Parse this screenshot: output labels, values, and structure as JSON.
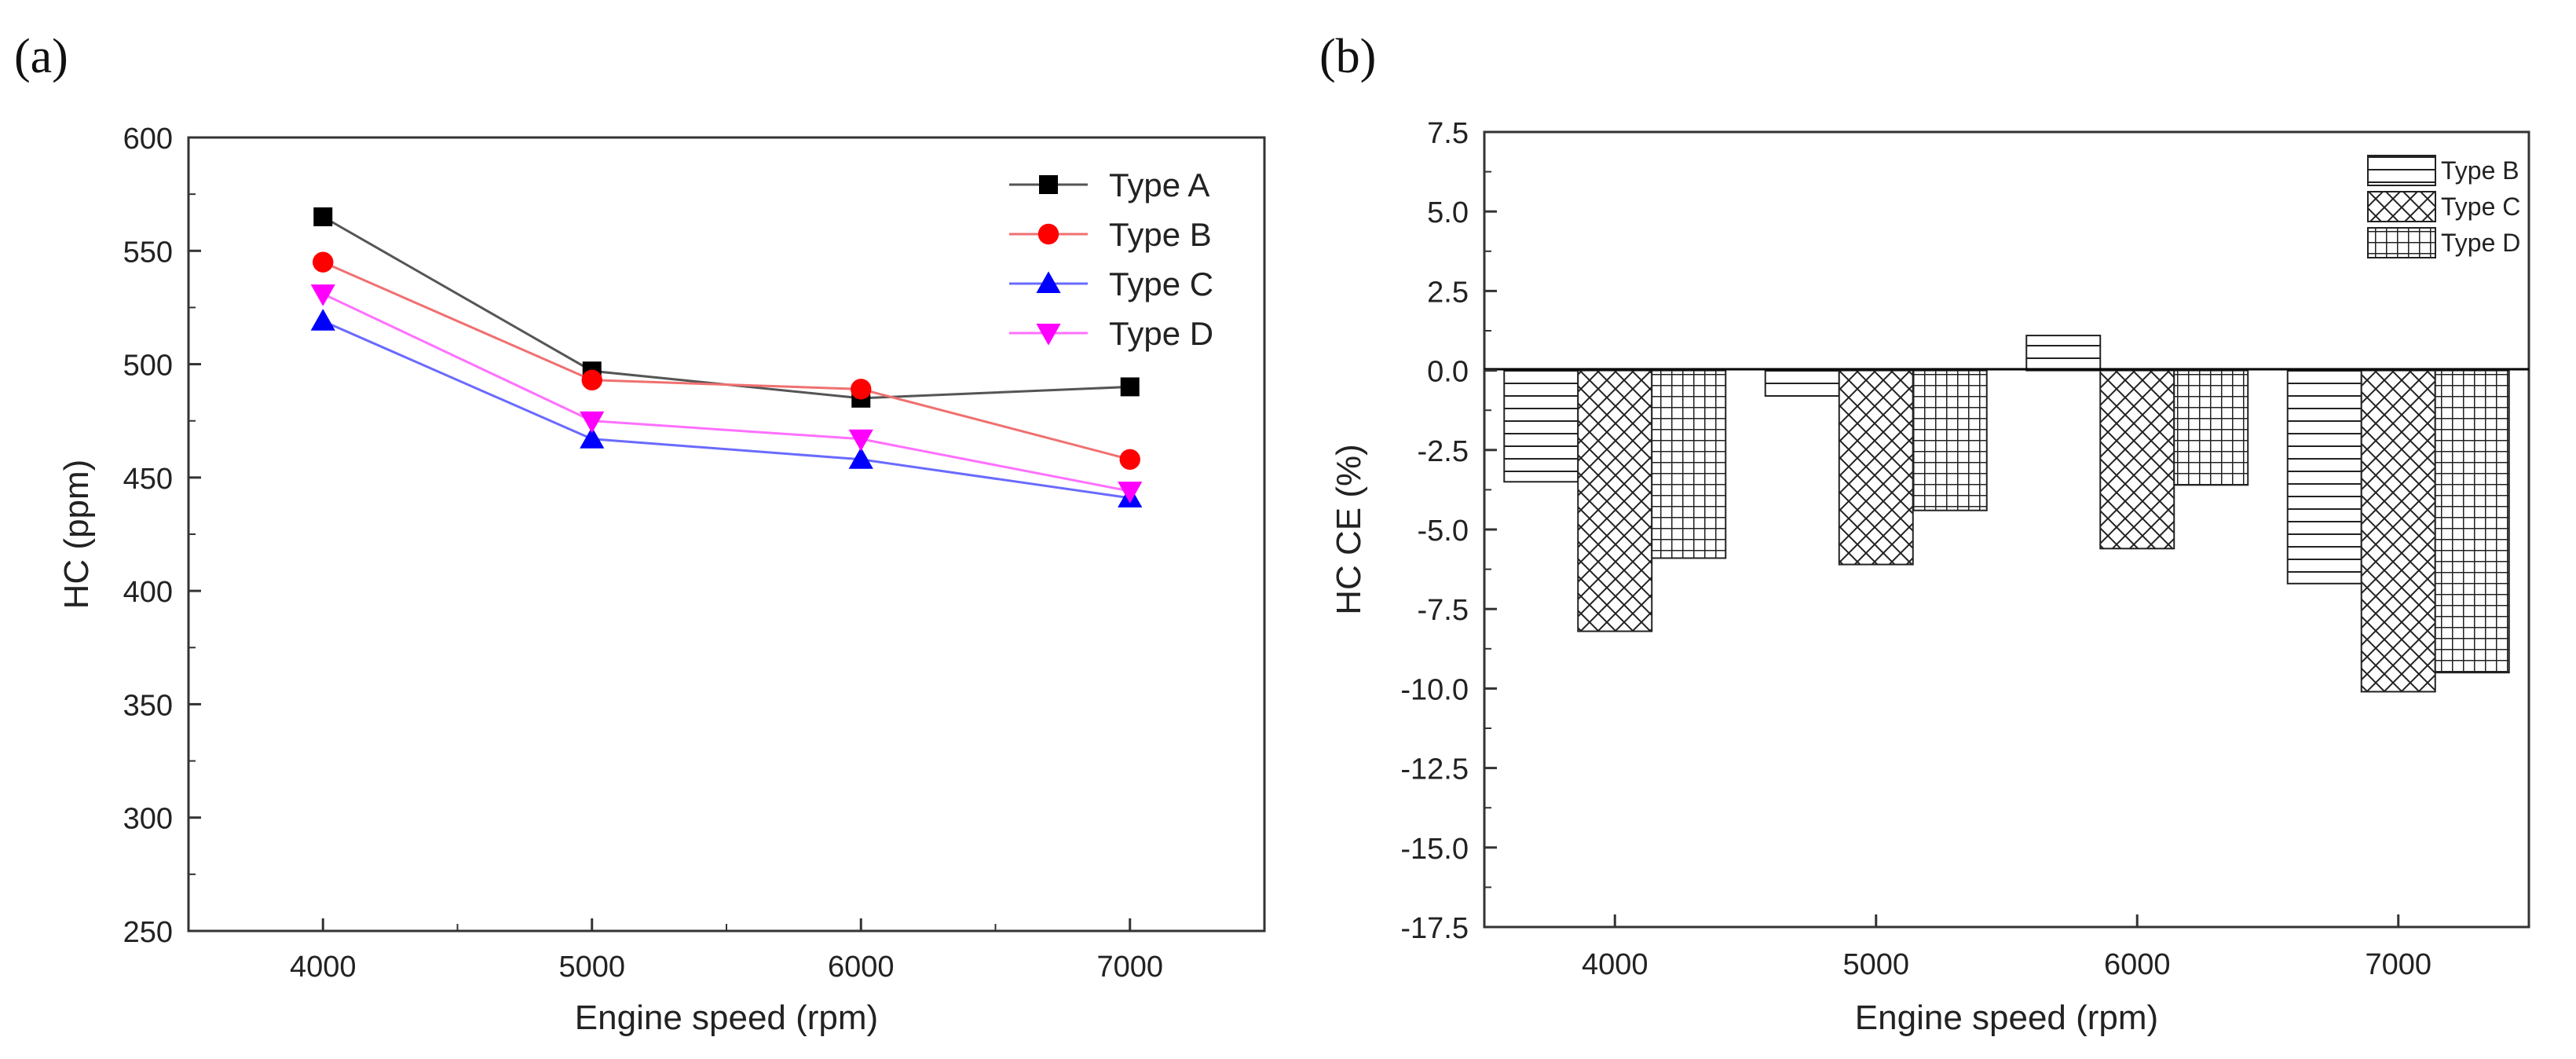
{
  "chart_data": [
    {
      "panel_label": "(a)",
      "type": "line",
      "x": [
        4000,
        5000,
        6000,
        7000
      ],
      "xlabel": "Engine speed (rpm)",
      "ylabel": "HC (ppm)",
      "xlim": [
        3500,
        7500
      ],
      "ylim": [
        250,
        600
      ],
      "xticks": [
        "4000",
        "5000",
        "6000",
        "7000"
      ],
      "yticks": [
        "250",
        "300",
        "350",
        "400",
        "450",
        "500",
        "550",
        "600"
      ],
      "legend_position": "top-right",
      "grid": false,
      "series": [
        {
          "name": "Type A",
          "values": [
            565,
            497,
            485,
            490
          ],
          "color": "#000000",
          "line_color": "#555555",
          "marker": "square"
        },
        {
          "name": "Type B",
          "values": [
            545,
            493,
            489,
            458
          ],
          "color": "#ff0000",
          "line_color": "#f07070",
          "marker": "circle"
        },
        {
          "name": "Type C",
          "values": [
            519,
            467,
            458,
            441
          ],
          "color": "#0000ff",
          "line_color": "#6a6aff",
          "marker": "triangle-up"
        },
        {
          "name": "Type D",
          "values": [
            531,
            475,
            467,
            444
          ],
          "color": "#ff00ff",
          "line_color": "#ff70ff",
          "marker": "triangle-down"
        }
      ]
    },
    {
      "panel_label": "(b)",
      "type": "bar",
      "categories": [
        "4000",
        "5000",
        "6000",
        "7000"
      ],
      "xlabel": "Engine speed (rpm)",
      "ylabel": "HC CE (%)",
      "ylim": [
        -17.5,
        7.5
      ],
      "yticks": [
        "7.5",
        "5.0",
        "2.5",
        "0.0",
        "-2.5",
        "-5.0",
        "-7.5",
        "-10.0",
        "-12.5",
        "-15.0",
        "-17.5"
      ],
      "legend_position": "top-right",
      "grid": false,
      "series": [
        {
          "name": "Type B",
          "values": [
            -3.5,
            -0.8,
            1.1,
            -6.7
          ],
          "pattern": "horizontal-lines"
        },
        {
          "name": "Type C",
          "values": [
            -8.2,
            -6.1,
            -5.6,
            -10.1
          ],
          "pattern": "diagonal-crosshatch"
        },
        {
          "name": "Type D",
          "values": [
            -5.9,
            -4.4,
            -3.6,
            -9.5
          ],
          "pattern": "square-grid"
        }
      ]
    }
  ]
}
